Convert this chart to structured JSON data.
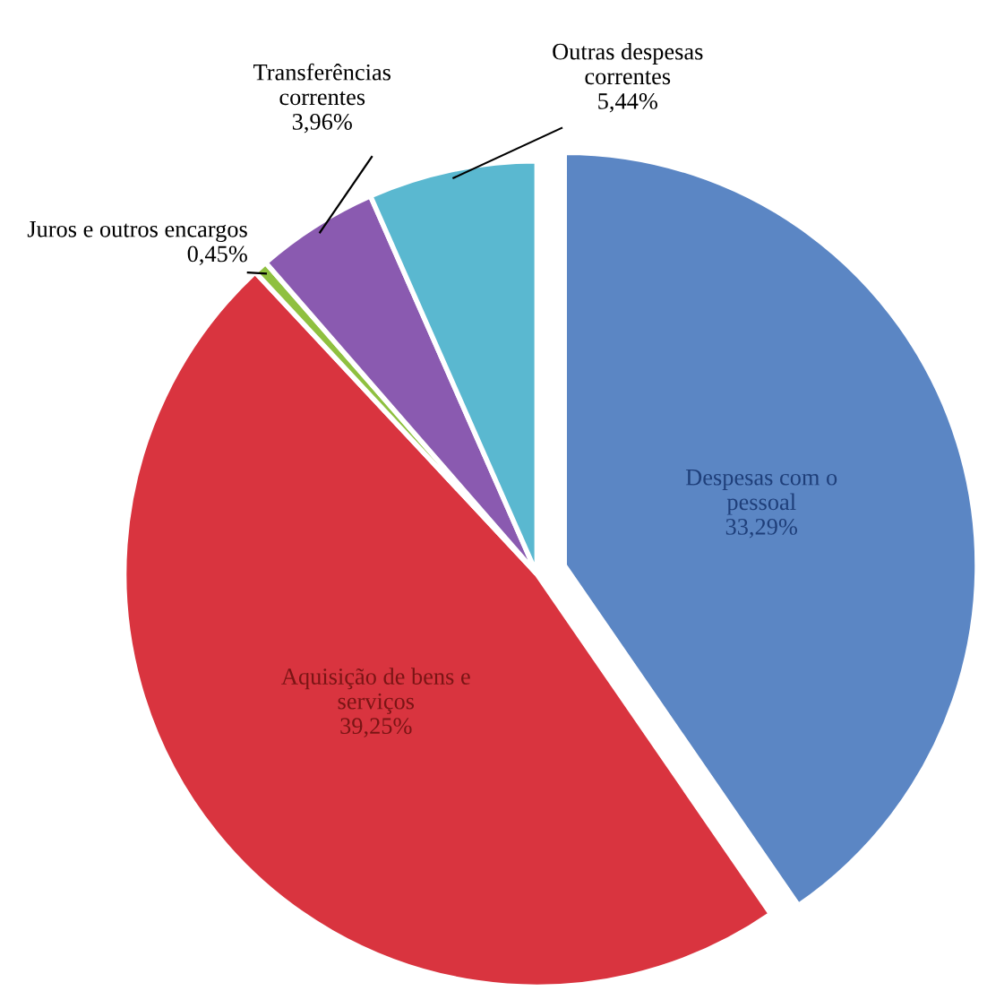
{
  "chart_data": {
    "type": "pie",
    "categories": [
      "Despesas com o\npessoal",
      "Aquisição de bens e\nserviços",
      "Juros e outros encargos",
      "Transferências\ncorrentes",
      "Outras despesas\ncorrentes"
    ],
    "values": [
      33.29,
      39.25,
      0.45,
      3.96,
      5.44
    ],
    "value_labels": [
      "33,29%",
      "39,25%",
      "0,45%",
      "3,96%",
      "5,44%"
    ],
    "colors": [
      "#5b86c4",
      "#d9343f",
      "#8fc040",
      "#8a5ab0",
      "#5ab8d0"
    ]
  }
}
